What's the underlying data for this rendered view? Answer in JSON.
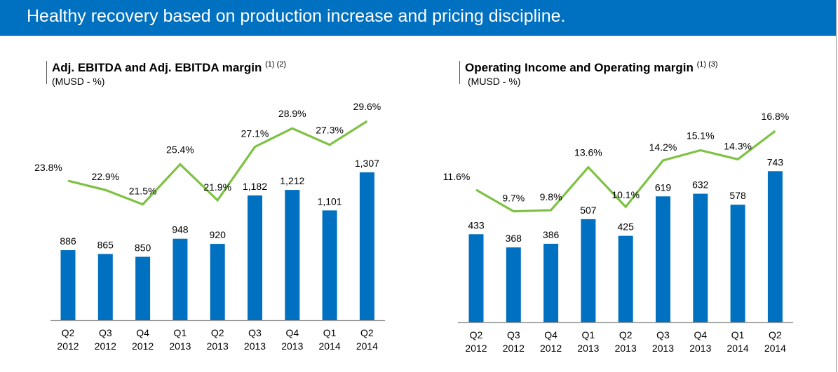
{
  "header": {
    "title": "Healthy recovery based on production increase and pricing discipline."
  },
  "colors": {
    "header_bg": "#0070C0",
    "bar": "#0070C0",
    "line": "#7DC243",
    "axis": "#999999"
  },
  "chart_data": [
    {
      "type": "bar+line",
      "title": "Adj. EBITDA and Adj. EBITDA margin",
      "title_footnotes": "(1) (2)",
      "unit": "(MUSD - %)",
      "categories": [
        {
          "q": "Q2",
          "year": "2012"
        },
        {
          "q": "Q3",
          "year": "2012"
        },
        {
          "q": "Q4",
          "year": "2012"
        },
        {
          "q": "Q1",
          "year": "2013"
        },
        {
          "q": "Q2",
          "year": "2013"
        },
        {
          "q": "Q3",
          "year": "2013"
        },
        {
          "q": "Q4",
          "year": "2013"
        },
        {
          "q": "Q1",
          "year": "2014"
        },
        {
          "q": "Q2",
          "year": "2014"
        }
      ],
      "series": [
        {
          "name": "Adj. EBITDA (MUSD)",
          "type": "bar",
          "values": [
            886,
            865,
            850,
            948,
            920,
            1182,
            1212,
            1101,
            1307
          ],
          "labels": [
            "886",
            "865",
            "850",
            "948",
            "920",
            "1,182",
            "1,212",
            "1,101",
            "1,307"
          ]
        },
        {
          "name": "Adj. EBITDA margin (%)",
          "type": "line",
          "values": [
            23.8,
            22.9,
            21.5,
            25.4,
            21.9,
            27.1,
            28.9,
            27.3,
            29.6
          ],
          "labels": [
            "23.8%",
            "22.9%",
            "21.5%",
            "25.4%",
            "21.9%",
            "27.1%",
            "28.9%",
            "27.3%",
            "29.6%"
          ]
        }
      ],
      "xlabel": "",
      "ylabel": "",
      "grid": false,
      "legend": "none"
    },
    {
      "type": "bar+line",
      "title": "Operating Income and Operating margin",
      "title_footnotes": "(1) (3)",
      "unit": "(MUSD - %)",
      "categories": [
        {
          "q": "Q2",
          "year": "2012"
        },
        {
          "q": "Q3",
          "year": "2012"
        },
        {
          "q": "Q4",
          "year": "2012"
        },
        {
          "q": "Q1",
          "year": "2013"
        },
        {
          "q": "Q2",
          "year": "2013"
        },
        {
          "q": "Q3",
          "year": "2013"
        },
        {
          "q": "Q4",
          "year": "2013"
        },
        {
          "q": "Q1",
          "year": "2014"
        },
        {
          "q": "Q2",
          "year": "2014"
        }
      ],
      "series": [
        {
          "name": "Operating Income (MUSD)",
          "type": "bar",
          "values": [
            433,
            368,
            386,
            507,
            425,
            619,
            632,
            578,
            743
          ],
          "labels": [
            "433",
            "368",
            "386",
            "507",
            "425",
            "619",
            "632",
            "578",
            "743"
          ]
        },
        {
          "name": "Operating margin (%)",
          "type": "line",
          "values": [
            11.6,
            9.7,
            9.8,
            13.6,
            10.1,
            14.2,
            15.1,
            14.3,
            16.8
          ],
          "labels": [
            "11.6%",
            "9.7%",
            "9.8%",
            "13.6%",
            "10.1%",
            "14.2%",
            "15.1%",
            "14.3%",
            "16.8%"
          ]
        }
      ],
      "xlabel": "",
      "ylabel": "",
      "grid": false,
      "legend": "none"
    }
  ]
}
